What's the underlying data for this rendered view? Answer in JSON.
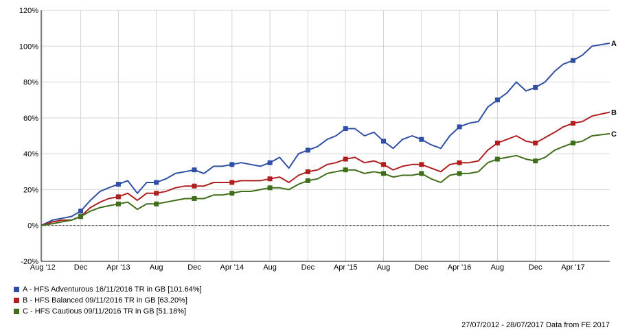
{
  "chart_data": {
    "type": "line",
    "xlabel": "",
    "ylabel": "",
    "ylim": [
      -20,
      120
    ],
    "y_ticks": [
      "-20%",
      "0%",
      "20%",
      "40%",
      "60%",
      "80%",
      "100%",
      "120%"
    ],
    "x_ticks": [
      "Aug '12",
      "Dec",
      "Apr '13",
      "Aug",
      "Dec",
      "Apr '14",
      "Aug",
      "Dec",
      "Apr '15",
      "Aug",
      "Dec",
      "Apr '16",
      "Aug",
      "Dec",
      "Apr '17"
    ],
    "x_tick_dates": [
      "2012-08",
      "2012-12",
      "2013-04",
      "2013-08",
      "2013-12",
      "2014-04",
      "2014-08",
      "2014-12",
      "2015-04",
      "2015-08",
      "2015-12",
      "2016-04",
      "2016-08",
      "2016-12",
      "2017-04"
    ],
    "x_start": "2012-07-27",
    "x_end": "2017-07-28",
    "grid": true,
    "legend_position": "bottom-left",
    "series": [
      {
        "name": "A - HFS Adventurous 16/11/2016 TR in GB [101.64%]",
        "end_label": "A",
        "color": "#2e4fa3",
        "points": [
          [
            "2012-07-27",
            0
          ],
          [
            "2012-09",
            3
          ],
          [
            "2012-10",
            4
          ],
          [
            "2012-11",
            5
          ],
          [
            "2012-12",
            8
          ],
          [
            "2013-01",
            14
          ],
          [
            "2013-02",
            19
          ],
          [
            "2013-03",
            21
          ],
          [
            "2013-04",
            23
          ],
          [
            "2013-05",
            25
          ],
          [
            "2013-06",
            18
          ],
          [
            "2013-07",
            24
          ],
          [
            "2013-08",
            24
          ],
          [
            "2013-09",
            26
          ],
          [
            "2013-10",
            29
          ],
          [
            "2013-11",
            30
          ],
          [
            "2013-12",
            31
          ],
          [
            "2014-01",
            29
          ],
          [
            "2014-02",
            33
          ],
          [
            "2014-03",
            33
          ],
          [
            "2014-04",
            34
          ],
          [
            "2014-05",
            35
          ],
          [
            "2014-06",
            34
          ],
          [
            "2014-07",
            33
          ],
          [
            "2014-08",
            35
          ],
          [
            "2014-09",
            38
          ],
          [
            "2014-10",
            32
          ],
          [
            "2014-11",
            40
          ],
          [
            "2014-12",
            42
          ],
          [
            "2015-01",
            44
          ],
          [
            "2015-02",
            48
          ],
          [
            "2015-03",
            50
          ],
          [
            "2015-04",
            54
          ],
          [
            "2015-05",
            54
          ],
          [
            "2015-06",
            50
          ],
          [
            "2015-07",
            52
          ],
          [
            "2015-08",
            47
          ],
          [
            "2015-09",
            43
          ],
          [
            "2015-10",
            48
          ],
          [
            "2015-11",
            50
          ],
          [
            "2015-12",
            48
          ],
          [
            "2016-01",
            45
          ],
          [
            "2016-02",
            43
          ],
          [
            "2016-03",
            50
          ],
          [
            "2016-04",
            55
          ],
          [
            "2016-05",
            57
          ],
          [
            "2016-06",
            58
          ],
          [
            "2016-07",
            66
          ],
          [
            "2016-08",
            70
          ],
          [
            "2016-09",
            74
          ],
          [
            "2016-10",
            80
          ],
          [
            "2016-11",
            75
          ],
          [
            "2016-12",
            77
          ],
          [
            "2017-01",
            80
          ],
          [
            "2017-02",
            86
          ],
          [
            "2017-03",
            90
          ],
          [
            "2017-04",
            92
          ],
          [
            "2017-05",
            95
          ],
          [
            "2017-06",
            100
          ],
          [
            "2017-07-28",
            101.64
          ]
        ]
      },
      {
        "name": "B - HFS Balanced 09/11/2016 TR in GB [63.20%]",
        "end_label": "B",
        "color": "#b01f1f",
        "points": [
          [
            "2012-07-27",
            0
          ],
          [
            "2012-09",
            2
          ],
          [
            "2012-10",
            3
          ],
          [
            "2012-11",
            3
          ],
          [
            "2012-12",
            5
          ],
          [
            "2013-01",
            10
          ],
          [
            "2013-02",
            13
          ],
          [
            "2013-03",
            15
          ],
          [
            "2013-04",
            16
          ],
          [
            "2013-05",
            18
          ],
          [
            "2013-06",
            14
          ],
          [
            "2013-07",
            18
          ],
          [
            "2013-08",
            18
          ],
          [
            "2013-09",
            19
          ],
          [
            "2013-10",
            21
          ],
          [
            "2013-11",
            22
          ],
          [
            "2013-12",
            22
          ],
          [
            "2014-01",
            22
          ],
          [
            "2014-02",
            24
          ],
          [
            "2014-03",
            24
          ],
          [
            "2014-04",
            24
          ],
          [
            "2014-05",
            25
          ],
          [
            "2014-06",
            25
          ],
          [
            "2014-07",
            25
          ],
          [
            "2014-08",
            26
          ],
          [
            "2014-09",
            27
          ],
          [
            "2014-10",
            24
          ],
          [
            "2014-11",
            28
          ],
          [
            "2014-12",
            30
          ],
          [
            "2015-01",
            31
          ],
          [
            "2015-02",
            34
          ],
          [
            "2015-03",
            35
          ],
          [
            "2015-04",
            37
          ],
          [
            "2015-05",
            38
          ],
          [
            "2015-06",
            35
          ],
          [
            "2015-07",
            36
          ],
          [
            "2015-08",
            34
          ],
          [
            "2015-09",
            31
          ],
          [
            "2015-10",
            33
          ],
          [
            "2015-11",
            34
          ],
          [
            "2015-12",
            34
          ],
          [
            "2016-01",
            32
          ],
          [
            "2016-02",
            30
          ],
          [
            "2016-03",
            34
          ],
          [
            "2016-04",
            35
          ],
          [
            "2016-05",
            35
          ],
          [
            "2016-06",
            36
          ],
          [
            "2016-07",
            42
          ],
          [
            "2016-08",
            46
          ],
          [
            "2016-09",
            48
          ],
          [
            "2016-10",
            50
          ],
          [
            "2016-11",
            47
          ],
          [
            "2016-12",
            46
          ],
          [
            "2017-01",
            49
          ],
          [
            "2017-02",
            52
          ],
          [
            "2017-03",
            55
          ],
          [
            "2017-04",
            57
          ],
          [
            "2017-05",
            58
          ],
          [
            "2017-06",
            61
          ],
          [
            "2017-07-28",
            63.2
          ]
        ]
      },
      {
        "name": "C - HFS Cautious 09/11/2016 TR in GB [51.18%]",
        "end_label": "C",
        "color": "#3f6e1a",
        "points": [
          [
            "2012-07-27",
            0
          ],
          [
            "2012-09",
            1
          ],
          [
            "2012-10",
            2
          ],
          [
            "2012-11",
            3
          ],
          [
            "2012-12",
            5
          ],
          [
            "2013-01",
            8
          ],
          [
            "2013-02",
            10
          ],
          [
            "2013-03",
            11
          ],
          [
            "2013-04",
            12
          ],
          [
            "2013-05",
            13
          ],
          [
            "2013-06",
            9
          ],
          [
            "2013-07",
            12
          ],
          [
            "2013-08",
            12
          ],
          [
            "2013-09",
            13
          ],
          [
            "2013-10",
            14
          ],
          [
            "2013-11",
            15
          ],
          [
            "2013-12",
            15
          ],
          [
            "2014-01",
            15
          ],
          [
            "2014-02",
            17
          ],
          [
            "2014-03",
            17
          ],
          [
            "2014-04",
            18
          ],
          [
            "2014-05",
            19
          ],
          [
            "2014-06",
            19
          ],
          [
            "2014-07",
            20
          ],
          [
            "2014-08",
            21
          ],
          [
            "2014-09",
            21
          ],
          [
            "2014-10",
            20
          ],
          [
            "2014-11",
            23
          ],
          [
            "2014-12",
            25
          ],
          [
            "2015-01",
            26
          ],
          [
            "2015-02",
            29
          ],
          [
            "2015-03",
            30
          ],
          [
            "2015-04",
            31
          ],
          [
            "2015-05",
            31
          ],
          [
            "2015-06",
            29
          ],
          [
            "2015-07",
            30
          ],
          [
            "2015-08",
            29
          ],
          [
            "2015-09",
            27
          ],
          [
            "2015-10",
            28
          ],
          [
            "2015-11",
            28
          ],
          [
            "2015-12",
            29
          ],
          [
            "2016-01",
            26
          ],
          [
            "2016-02",
            24
          ],
          [
            "2016-03",
            28
          ],
          [
            "2016-04",
            29
          ],
          [
            "2016-05",
            29
          ],
          [
            "2016-06",
            30
          ],
          [
            "2016-07",
            35
          ],
          [
            "2016-08",
            37
          ],
          [
            "2016-09",
            38
          ],
          [
            "2016-10",
            39
          ],
          [
            "2016-11",
            37
          ],
          [
            "2016-12",
            36
          ],
          [
            "2017-01",
            38
          ],
          [
            "2017-02",
            42
          ],
          [
            "2017-03",
            44
          ],
          [
            "2017-04",
            46
          ],
          [
            "2017-05",
            47
          ],
          [
            "2017-06",
            50
          ],
          [
            "2017-07-28",
            51.18
          ]
        ]
      }
    ]
  },
  "footer": {
    "date_range": "27/07/2012 - 28/07/2017 Data from FE 2017"
  }
}
